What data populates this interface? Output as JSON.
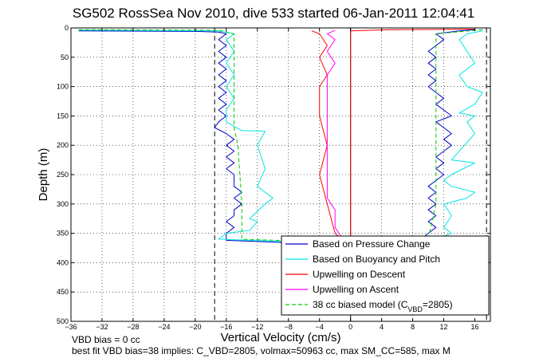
{
  "chart_data": {
    "type": "line",
    "title": "SG502 RossSea Nov 2010, dive 533 started 06-Jan-2011 12:04:41",
    "xlabel": "Vertical Velocity (cm/s)",
    "ylabel": "Depth (m)",
    "xlim": [
      -36,
      18
    ],
    "ylim": [
      0,
      500
    ],
    "y_reversed": true,
    "grid": true,
    "x_ticks": [
      -36,
      -32,
      -28,
      -24,
      -20,
      -16,
      -12,
      -8,
      -4,
      0,
      4,
      8,
      12,
      16
    ],
    "y_ticks": [
      0,
      50,
      100,
      150,
      200,
      250,
      300,
      350,
      400,
      450,
      500
    ],
    "x_tick_labels": [
      "−36",
      "−32",
      "−28",
      "−24",
      "−20",
      "−16",
      "−12",
      "−8",
      "−4",
      "0",
      "4",
      "8",
      "12",
      "16"
    ],
    "y_tick_labels": [
      "0",
      "50",
      "100",
      "150",
      "200",
      "250",
      "300",
      "350",
      "400",
      "450",
      "500"
    ],
    "legend_position": "bottom-right",
    "vertical_lines": [
      {
        "x": -17.5,
        "style": "dashed",
        "color": "#000000"
      },
      {
        "x": 0,
        "style": "solid",
        "color": "#000000"
      },
      {
        "x": 17.5,
        "style": "dashed",
        "color": "#000000"
      }
    ],
    "series": [
      {
        "name": "Based on Pressure Change",
        "color": "#0000cc",
        "style": "solid",
        "points": [
          [
            -35,
            5
          ],
          [
            -20,
            6
          ],
          [
            -17,
            7
          ],
          [
            -16,
            10
          ],
          [
            -17,
            20
          ],
          [
            -16,
            30
          ],
          [
            -17,
            40
          ],
          [
            -16,
            50
          ],
          [
            -17,
            60
          ],
          [
            -16,
            70
          ],
          [
            -17,
            80
          ],
          [
            -16,
            90
          ],
          [
            -17,
            100
          ],
          [
            -16,
            110
          ],
          [
            -17,
            120
          ],
          [
            -16,
            130
          ],
          [
            -17,
            140
          ],
          [
            -16,
            150
          ],
          [
            -17,
            160
          ],
          [
            -17.5,
            170
          ],
          [
            -16,
            180
          ],
          [
            -15,
            190
          ],
          [
            -16,
            200
          ],
          [
            -15,
            210
          ],
          [
            -16,
            220
          ],
          [
            -15,
            230
          ],
          [
            -16,
            240
          ],
          [
            -15,
            250
          ],
          [
            -15,
            260
          ],
          [
            -15,
            270
          ],
          [
            -14,
            280
          ],
          [
            -15,
            290
          ],
          [
            -14,
            300
          ],
          [
            -15,
            310
          ],
          [
            -15,
            320
          ],
          [
            -16,
            330
          ],
          [
            -15,
            340
          ],
          [
            -16,
            350
          ],
          [
            -16,
            362
          ],
          [
            -8,
            366
          ],
          [
            0,
            366
          ],
          [
            9,
            360
          ],
          [
            10,
            350
          ],
          [
            11,
            340
          ],
          [
            10,
            330
          ],
          [
            11,
            320
          ],
          [
            10,
            310
          ],
          [
            11,
            300
          ],
          [
            10,
            290
          ],
          [
            11,
            280
          ],
          [
            10,
            270
          ],
          [
            11,
            260
          ],
          [
            12,
            250
          ],
          [
            11,
            240
          ],
          [
            12,
            230
          ],
          [
            11,
            220
          ],
          [
            12,
            210
          ],
          [
            13,
            200
          ],
          [
            12,
            190
          ],
          [
            13,
            180
          ],
          [
            12,
            170
          ],
          [
            11,
            160
          ],
          [
            13,
            150
          ],
          [
            12,
            140
          ],
          [
            11,
            130
          ],
          [
            12,
            120
          ],
          [
            11,
            110
          ],
          [
            10,
            100
          ],
          [
            11,
            90
          ],
          [
            10,
            80
          ],
          [
            11,
            70
          ],
          [
            10,
            60
          ],
          [
            11,
            50
          ],
          [
            10,
            40
          ],
          [
            11,
            30
          ],
          [
            12,
            20
          ],
          [
            11,
            10
          ],
          [
            14,
            5
          ],
          [
            16,
            3
          ]
        ]
      },
      {
        "name": "Based on Buoyancy and Pitch",
        "color": "#00e5e5",
        "style": "solid",
        "points": [
          [
            -35,
            4
          ],
          [
            -17,
            5
          ],
          [
            -15,
            10
          ],
          [
            -16,
            20
          ],
          [
            -15,
            40
          ],
          [
            -16,
            60
          ],
          [
            -15,
            80
          ],
          [
            -16,
            100
          ],
          [
            -15,
            120
          ],
          [
            -16,
            140
          ],
          [
            -16,
            160
          ],
          [
            -14,
            175
          ],
          [
            -11,
            176
          ],
          [
            -12,
            200
          ],
          [
            -11,
            240
          ],
          [
            -12,
            270
          ],
          [
            -11,
            280
          ],
          [
            -10,
            290
          ],
          [
            -11,
            300
          ],
          [
            -13,
            325
          ],
          [
            -12,
            330
          ],
          [
            -13,
            345
          ],
          [
            -16,
            350
          ],
          [
            -17,
            360
          ],
          [
            -4,
            366
          ],
          [
            0,
            366
          ],
          [
            11,
            360
          ],
          [
            13,
            350
          ],
          [
            12,
            340
          ],
          [
            13,
            320
          ],
          [
            12,
            300
          ],
          [
            15,
            290
          ],
          [
            16,
            280
          ],
          [
            13,
            270
          ],
          [
            12,
            260
          ],
          [
            13,
            250
          ],
          [
            16,
            230
          ],
          [
            13,
            225
          ],
          [
            14,
            210
          ],
          [
            16,
            180
          ],
          [
            15,
            160
          ],
          [
            16,
            150
          ],
          [
            14,
            145
          ],
          [
            16,
            130
          ],
          [
            17,
            110
          ],
          [
            15,
            100
          ],
          [
            14,
            80
          ],
          [
            16,
            60
          ],
          [
            15,
            40
          ],
          [
            14,
            20
          ],
          [
            15,
            10
          ],
          [
            17,
            5
          ]
        ]
      },
      {
        "name": "Upwelling on Descent",
        "color": "#ff0000",
        "style": "solid",
        "points": [
          [
            -5,
            5
          ],
          [
            -4,
            10
          ],
          [
            -3,
            30
          ],
          [
            -4,
            50
          ],
          [
            -3,
            80
          ],
          [
            -4,
            100
          ],
          [
            -4,
            150
          ],
          [
            -3,
            200
          ],
          [
            -4,
            250
          ],
          [
            -3,
            300
          ],
          [
            -2,
            350
          ],
          [
            -1,
            362
          ],
          [
            0,
            366
          ],
          [
            0,
            5
          ],
          [
            5,
            3
          ],
          [
            16,
            2
          ]
        ]
      },
      {
        "name": "Upwelling on Ascent",
        "color": "#ff00ff",
        "style": "solid",
        "points": [
          [
            -2,
            4
          ],
          [
            -3,
            10
          ],
          [
            -2,
            20
          ],
          [
            -3,
            40
          ],
          [
            -2,
            60
          ],
          [
            -3,
            80
          ],
          [
            -3,
            100
          ],
          [
            -3,
            150
          ],
          [
            -3,
            200
          ],
          [
            -3,
            250
          ],
          [
            -3,
            290
          ],
          [
            -2,
            310
          ],
          [
            -2,
            340
          ],
          [
            -1,
            360
          ],
          [
            0,
            366
          ]
        ]
      },
      {
        "name": "38 cc biased model (C_VBD=2805)",
        "color": "#00cc00",
        "style": "dashed",
        "points": [
          [
            -35,
            3
          ],
          [
            -17,
            4
          ],
          [
            -15,
            10
          ],
          [
            -15,
            100
          ],
          [
            -15,
            170
          ],
          [
            -14.5,
            200
          ],
          [
            -14,
            300
          ],
          [
            -14,
            360
          ],
          [
            0,
            366
          ],
          [
            10,
            360
          ],
          [
            11,
            300
          ],
          [
            11,
            200
          ],
          [
            11,
            100
          ],
          [
            11,
            10
          ],
          [
            17,
            3
          ]
        ]
      }
    ],
    "legend_labels": [
      "Based on Pressure Change",
      "Based on Buoyancy and Pitch",
      "Upwelling on Descent",
      "Upwelling on Ascent",
      "38 cc biased model (C"
    ],
    "legend_vbd_sub": "VBD",
    "legend_vbd_tail": "=2805)"
  },
  "annotations": {
    "line1": "VBD bias = 0 cc",
    "line2": "best fit VBD bias=38 implies: C_VBD=2805, volmax=50963 cc, max SM_CC=585, max M"
  }
}
